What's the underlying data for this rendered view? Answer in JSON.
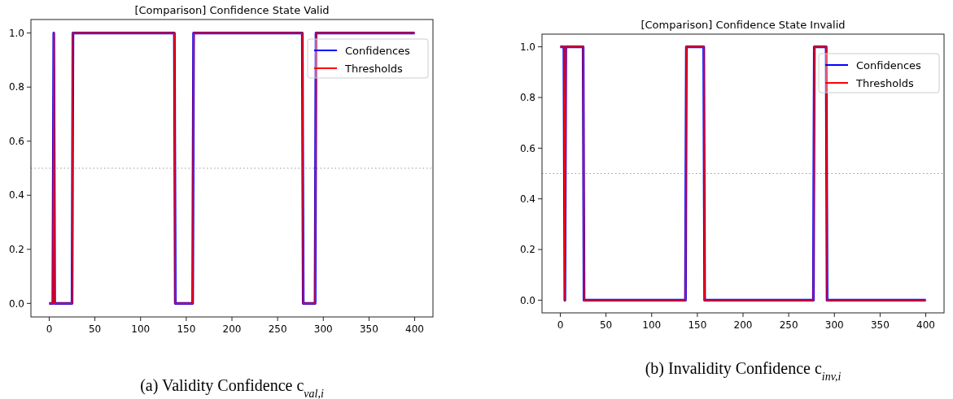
{
  "chart_data": [
    {
      "type": "line",
      "title": "[Comparison] Confidence State Valid",
      "x": [
        0,
        4,
        5,
        6,
        25,
        26,
        137,
        138,
        157,
        158,
        277,
        278,
        291,
        292,
        400
      ],
      "series": [
        {
          "name": "Confidences",
          "color": "#0000ff",
          "values": [
            0,
            0,
            1,
            0,
            0,
            1,
            1,
            0,
            0,
            1,
            1,
            0,
            0,
            1,
            1
          ]
        },
        {
          "name": "Thresholds",
          "color": "#ff0000",
          "values": [
            0,
            0,
            1,
            0,
            0,
            1,
            1,
            0,
            0,
            1,
            1,
            0,
            0,
            1,
            1
          ]
        }
      ],
      "xlim": [
        -20,
        420
      ],
      "xticks": [
        0,
        50,
        100,
        150,
        200,
        250,
        300,
        350,
        400
      ],
      "ylim": [
        -0.05,
        1.05
      ],
      "yticks": [
        {
          "value": 0,
          "label": "0.0"
        },
        {
          "value": 0.2,
          "label": "0.2"
        },
        {
          "value": 0.4,
          "label": "0.4"
        },
        {
          "value": 0.6,
          "label": "0.6"
        },
        {
          "value": 0.8,
          "label": "0.8"
        },
        {
          "value": 1,
          "label": "1.0"
        }
      ],
      "ref_lines": [
        {
          "axis": "y",
          "value": 0.5,
          "color": "#999999",
          "line_style": "dotted"
        }
      ],
      "legend": "top right",
      "annotations": [
        "(a) Validity Confidence c$_{val,i}$"
      ]
    },
    {
      "type": "line",
      "title": "[Comparison] Confidence State Invalid",
      "x": [
        0,
        4,
        5,
        6,
        25,
        26,
        137,
        138,
        157,
        158,
        277,
        278,
        291,
        292,
        400
      ],
      "series": [
        {
          "name": "Confidences",
          "color": "#0000ff",
          "values": [
            1,
            1,
            0,
            1,
            1,
            0,
            0,
            1,
            1,
            0,
            0,
            1,
            1,
            0,
            0
          ]
        },
        {
          "name": "Thresholds",
          "color": "#ff0000",
          "values": [
            1,
            1,
            0,
            1,
            1,
            0,
            0,
            1,
            1,
            0,
            0,
            1,
            1,
            0,
            0
          ]
        }
      ],
      "xlim": [
        -20,
        420
      ],
      "xticks": [
        0,
        50,
        100,
        150,
        200,
        250,
        300,
        350,
        400
      ],
      "ylim": [
        -0.05,
        1.05
      ],
      "yticks": [
        {
          "value": 0,
          "label": "0.0"
        },
        {
          "value": 0.2,
          "label": "0.2"
        },
        {
          "value": 0.4,
          "label": "0.4"
        },
        {
          "value": 0.6,
          "label": "0.6"
        },
        {
          "value": 0.8,
          "label": "0.8"
        },
        {
          "value": 1,
          "label": "1.0"
        }
      ],
      "ref_lines": [
        {
          "axis": "y",
          "value": 0.5,
          "color": "#999999",
          "line_style": "dotted"
        }
      ],
      "legend": "top right",
      "annotations": [
        "(b) Invalidity Confidence c$_{inv,i}$"
      ]
    }
  ]
}
